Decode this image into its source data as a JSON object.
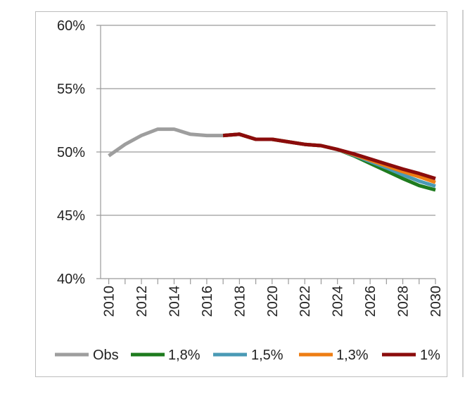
{
  "chart_data": {
    "type": "line",
    "title": "",
    "xlabel": "",
    "ylabel": "",
    "xlim": [
      2009.5,
      2030
    ],
    "ylim": [
      0.4,
      0.6
    ],
    "yticks": [
      0.4,
      0.45,
      0.5,
      0.55,
      0.6
    ],
    "ytick_labels": [
      "40%",
      "45%",
      "50%",
      "55%",
      "60%"
    ],
    "xticks": [
      2010,
      2012,
      2014,
      2016,
      2018,
      2020,
      2022,
      2024,
      2026,
      2028,
      2030
    ],
    "xtick_labels": [
      "2010",
      "2012",
      "2014",
      "2016",
      "2018",
      "2020",
      "2022",
      "2024",
      "2026",
      "2028",
      "2030"
    ],
    "grid": true,
    "legend_position": "bottom",
    "series": [
      {
        "name": "Obs",
        "color": "#9e9e9e",
        "x": [
          2010,
          2011,
          2012,
          2013,
          2014,
          2015,
          2016,
          2017
        ],
        "values": [
          0.497,
          0.506,
          0.513,
          0.518,
          0.518,
          0.514,
          0.513,
          0.513
        ]
      },
      {
        "name": "1,8%",
        "color": "#1e7b1e",
        "x": [
          2017,
          2018,
          2019,
          2020,
          2021,
          2022,
          2023,
          2024,
          2025,
          2026,
          2027,
          2028,
          2029,
          2030
        ],
        "values": [
          0.513,
          0.514,
          0.51,
          0.51,
          0.508,
          0.506,
          0.505,
          0.502,
          0.497,
          0.491,
          0.485,
          0.479,
          0.4735,
          0.47
        ]
      },
      {
        "name": "1,5%",
        "color": "#4a9ab5",
        "x": [
          2017,
          2018,
          2019,
          2020,
          2021,
          2022,
          2023,
          2024,
          2025,
          2026,
          2027,
          2028,
          2029,
          2030
        ],
        "values": [
          0.513,
          0.514,
          0.51,
          0.51,
          0.508,
          0.506,
          0.505,
          0.502,
          0.4975,
          0.4925,
          0.4875,
          0.482,
          0.477,
          0.473
        ]
      },
      {
        "name": "1,3%",
        "color": "#ee7d14",
        "x": [
          2017,
          2018,
          2019,
          2020,
          2021,
          2022,
          2023,
          2024,
          2025,
          2026,
          2027,
          2028,
          2029,
          2030
        ],
        "values": [
          0.513,
          0.514,
          0.51,
          0.51,
          0.508,
          0.506,
          0.505,
          0.502,
          0.498,
          0.4935,
          0.489,
          0.4845,
          0.4805,
          0.476
        ]
      },
      {
        "name": "1%",
        "color": "#8b0c0c",
        "x": [
          2017,
          2018,
          2019,
          2020,
          2021,
          2022,
          2023,
          2024,
          2025,
          2026,
          2027,
          2028,
          2029,
          2030
        ],
        "values": [
          0.513,
          0.514,
          0.51,
          0.51,
          0.508,
          0.506,
          0.505,
          0.502,
          0.4985,
          0.4945,
          0.4905,
          0.4865,
          0.483,
          0.479
        ]
      }
    ]
  }
}
